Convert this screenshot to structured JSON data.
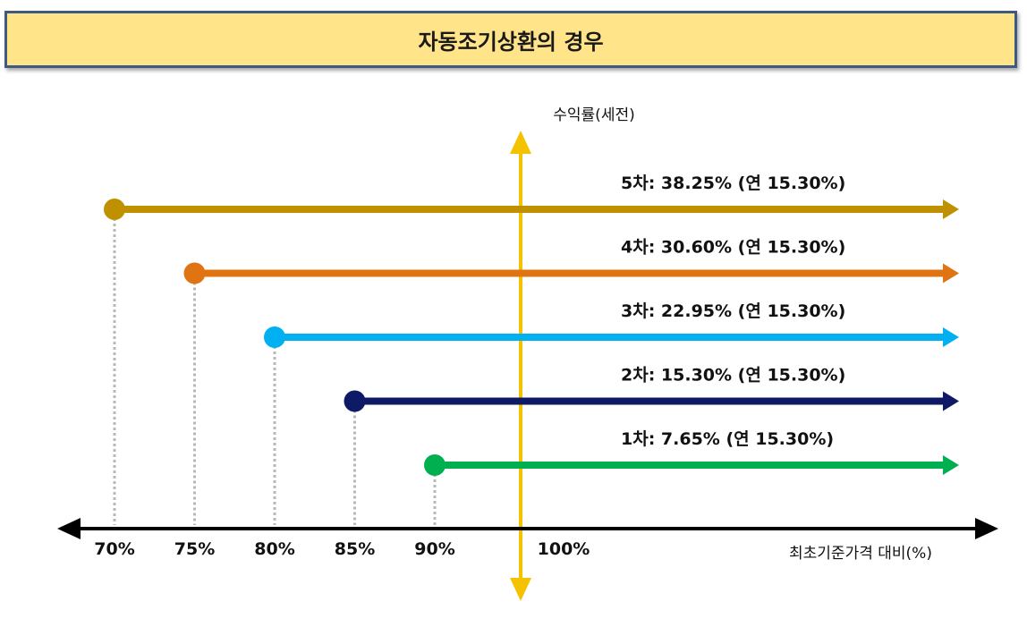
{
  "header": {
    "title": "자동조기상환의 경우"
  },
  "y_axis_label": "수익률(세전)",
  "x_axis_label": "최초기준가격 대비(%)",
  "reference_level": "100%",
  "colors": {
    "axis": "#000000",
    "vertical_axis": "#f5c200",
    "guide": "#b8b8b8",
    "header_bg": "#ffe48a",
    "header_border": "#3e5a80"
  },
  "chart_data": {
    "type": "diagram",
    "tiers": [
      {
        "round": "5차",
        "barrier_level": "70%",
        "label": "5차: 38.25% (연 15.30%)",
        "color": "#bf9000"
      },
      {
        "round": "4차",
        "barrier_level": "75%",
        "label": "4차: 30.60% (연 15.30%)",
        "color": "#e07412"
      },
      {
        "round": "3차",
        "barrier_level": "80%",
        "label": "3차: 22.95% (연 15.30%)",
        "color": "#00b0f0"
      },
      {
        "round": "2차",
        "barrier_level": "85%",
        "label": "2차: 15.30% (연 15.30%)",
        "color": "#0e1a66"
      },
      {
        "round": "1차",
        "barrier_level": "90%",
        "label": "1차: 7.65% (연 15.30%)",
        "color": "#00b050"
      }
    ]
  }
}
